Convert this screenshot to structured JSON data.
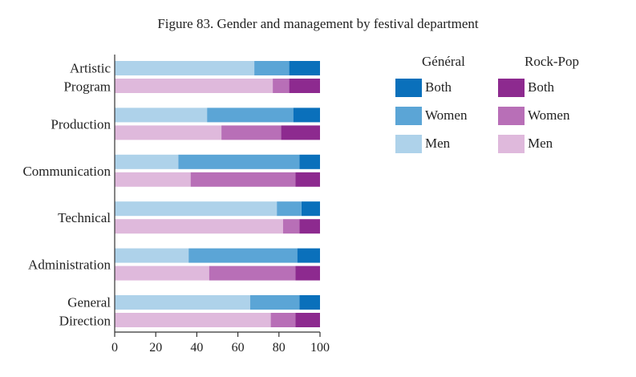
{
  "chart_data": {
    "type": "bar",
    "orientation": "horizontal",
    "stacked": true,
    "title": "Figure 83. Gender and management by festival department",
    "categories": [
      [
        "Artistic",
        "Program"
      ],
      [
        "Production"
      ],
      [
        "Communication"
      ],
      [
        "Technical"
      ],
      [
        "Administration"
      ],
      [
        "General",
        "Direction"
      ]
    ],
    "groups": [
      {
        "name": "Général",
        "series": [
          {
            "name": "Men",
            "color": "#aed2ea",
            "values": [
              68,
              45,
              31,
              79,
              36,
              66
            ]
          },
          {
            "name": "Women",
            "color": "#5ba5d6",
            "values": [
              17,
              42,
              59,
              12,
              53,
              24
            ]
          },
          {
            "name": "Both",
            "color": "#0a70bb",
            "values": [
              15,
              13,
              10,
              9,
              11,
              10
            ]
          }
        ]
      },
      {
        "name": "Rock-Pop",
        "series": [
          {
            "name": "Men",
            "color": "#dfb9dc",
            "values": [
              77,
              52,
              37,
              82,
              46,
              76
            ]
          },
          {
            "name": "Women",
            "color": "#b86fb7",
            "values": [
              8,
              29,
              51,
              8,
              42,
              12
            ]
          },
          {
            "name": "Both",
            "color": "#8d2a8f",
            "values": [
              15,
              19,
              12,
              10,
              12,
              12
            ]
          }
        ]
      }
    ],
    "xticks": [
      "0",
      "20",
      "40",
      "60",
      "80",
      "100"
    ],
    "xlim": [
      0,
      100
    ],
    "grid": false,
    "legend_placement": "right"
  }
}
